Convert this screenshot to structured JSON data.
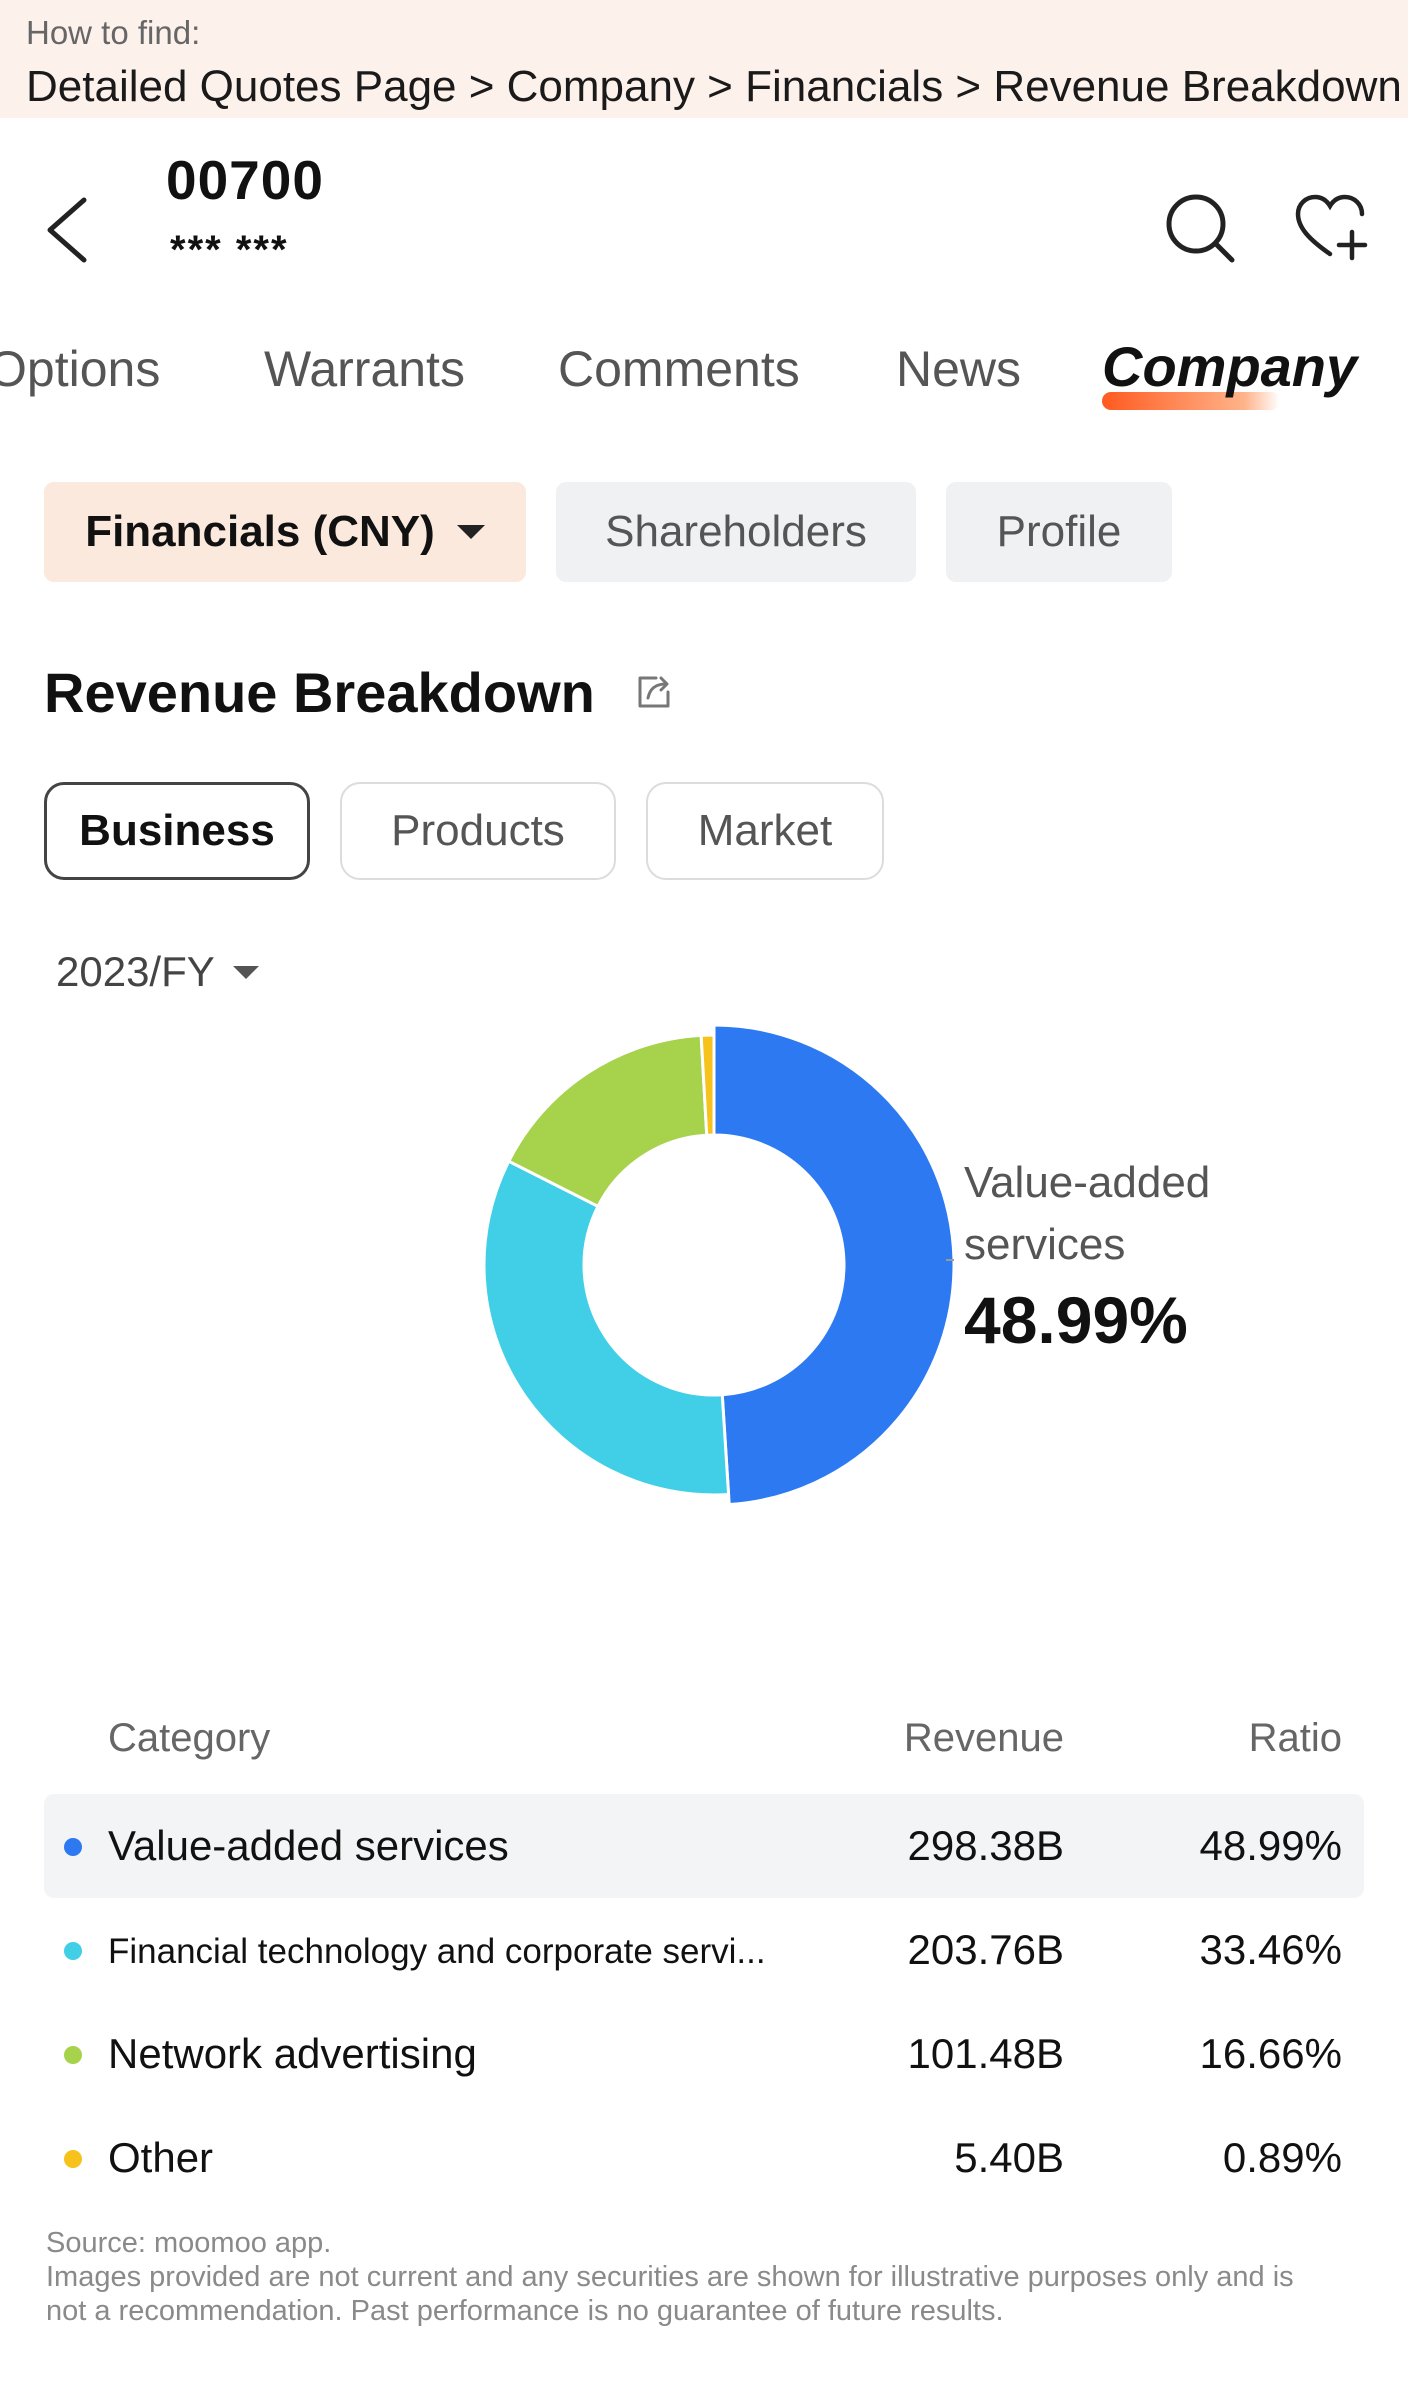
{
  "howto": {
    "label": "How to find:",
    "path": "Detailed Quotes Page > Company > Financials > Revenue Breakdown"
  },
  "header": {
    "ticker": "00700",
    "name": "*** ***",
    "icons": [
      "chevron-left-icon",
      "search-icon",
      "heart-plus-icon"
    ]
  },
  "tabs": [
    {
      "label": "Options",
      "active": false
    },
    {
      "label": "Warrants",
      "active": false
    },
    {
      "label": "Comments",
      "active": false
    },
    {
      "label": "News",
      "active": false
    },
    {
      "label": "Company",
      "active": true
    }
  ],
  "chips": [
    {
      "label": "Financials (CNY)",
      "active": true
    },
    {
      "label": "Shareholders",
      "active": false
    },
    {
      "label": "Profile",
      "active": false
    }
  ],
  "section": {
    "title": "Revenue Breakdown",
    "icon": "share-icon"
  },
  "segments": [
    {
      "label": "Business",
      "active": true
    },
    {
      "label": "Products",
      "active": false
    },
    {
      "label": "Market",
      "active": false
    }
  ],
  "period": "2023/FY",
  "callout": {
    "label": "Value-added services",
    "value": "48.99%"
  },
  "chart_data": {
    "type": "pie",
    "categories": [
      "Value-added services",
      "Financial technology and corporate servi...",
      "Network advertising",
      "Other"
    ],
    "values": [
      48.99,
      33.46,
      16.66,
      0.89
    ],
    "colors": [
      "#2c79f2",
      "#40cfe6",
      "#a6d24c",
      "#f6c21b"
    ]
  },
  "table": {
    "headers": {
      "category": "Category",
      "revenue": "Revenue",
      "ratio": "Ratio"
    },
    "rows": [
      {
        "name": "Value-added services",
        "revenue": "298.38B",
        "ratio": "48.99%",
        "color": "#2c79f2"
      },
      {
        "name": "Financial technology and corporate servi...",
        "revenue": "203.76B",
        "ratio": "33.46%",
        "color": "#40cfe6"
      },
      {
        "name": "Network advertising",
        "revenue": "101.48B",
        "ratio": "16.66%",
        "color": "#a6d24c"
      },
      {
        "name": "Other",
        "revenue": "5.40B",
        "ratio": "0.89%",
        "color": "#f6c21b"
      }
    ]
  },
  "footer": {
    "source": "Source: moomoo app.",
    "disclaimer": "Images provided are not current and any securities are shown for illustrative purposes only and is not a recommendation. Past performance is no guarantee of future results."
  }
}
